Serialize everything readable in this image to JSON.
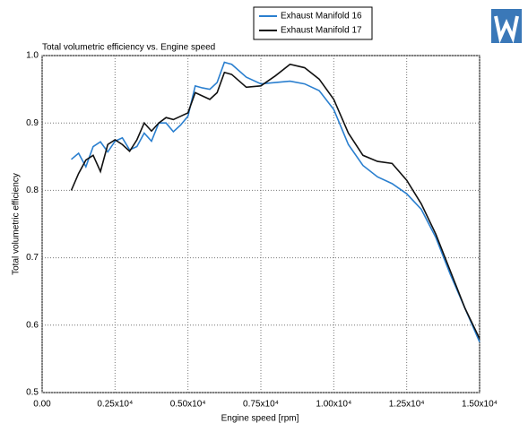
{
  "chart_data": {
    "type": "line",
    "title": "Total volumetric efficiency vs. Engine speed",
    "xlabel": "Engine speed  [rpm]",
    "ylabel": "Total volumetric efficiency",
    "x": [
      1000,
      1250,
      1500,
      1750,
      2000,
      2250,
      2500,
      2750,
      3000,
      3250,
      3500,
      3750,
      4000,
      4250,
      4500,
      4750,
      5000,
      5250,
      5500,
      5750,
      6000,
      6250,
      6500,
      7000,
      7500,
      8000,
      8500,
      9000,
      9500,
      10000,
      10500,
      11000,
      11500,
      12000,
      12500,
      13000,
      13500,
      14000,
      14500,
      15000
    ],
    "series": [
      {
        "name": "Exhaust Manifold 16",
        "color": "#2a7fcf",
        "values": [
          0.846,
          0.855,
          0.835,
          0.865,
          0.872,
          0.857,
          0.873,
          0.878,
          0.86,
          0.865,
          0.885,
          0.873,
          0.9,
          0.9,
          0.887,
          0.897,
          0.91,
          0.955,
          0.952,
          0.95,
          0.96,
          0.99,
          0.987,
          0.968,
          0.958,
          0.96,
          0.962,
          0.958,
          0.948,
          0.92,
          0.868,
          0.837,
          0.82,
          0.81,
          0.795,
          0.772,
          0.73,
          0.675,
          0.625,
          0.575
        ]
      },
      {
        "name": "Exhaust Manifold 17",
        "color": "#111111",
        "values": [
          0.8,
          0.825,
          0.845,
          0.852,
          0.828,
          0.868,
          0.875,
          0.868,
          0.858,
          0.875,
          0.9,
          0.888,
          0.9,
          0.908,
          0.905,
          0.91,
          0.915,
          0.945,
          0.94,
          0.935,
          0.945,
          0.975,
          0.972,
          0.953,
          0.955,
          0.97,
          0.987,
          0.982,
          0.965,
          0.935,
          0.885,
          0.852,
          0.843,
          0.84,
          0.815,
          0.78,
          0.735,
          0.68,
          0.625,
          0.58
        ]
      }
    ],
    "xlim": [
      0,
      15000
    ],
    "ylim": [
      0.5,
      1
    ],
    "xticks": [
      {
        "value": 0,
        "label": "0.00"
      },
      {
        "value": 2500,
        "label": "0.25x10⁴"
      },
      {
        "value": 5000,
        "label": "0.50x10⁴"
      },
      {
        "value": 7500,
        "label": "0.75x10⁴"
      },
      {
        "value": 10000,
        "label": "1.00x10⁴"
      },
      {
        "value": 12500,
        "label": "1.25x10⁴"
      },
      {
        "value": 15000,
        "label": "1.50x10⁴"
      }
    ],
    "yticks": [
      0.5,
      0.6,
      0.7,
      0.8,
      0.9,
      {
        "value": 1,
        "label": "1.0"
      }
    ],
    "grid": true,
    "legend": "top"
  }
}
